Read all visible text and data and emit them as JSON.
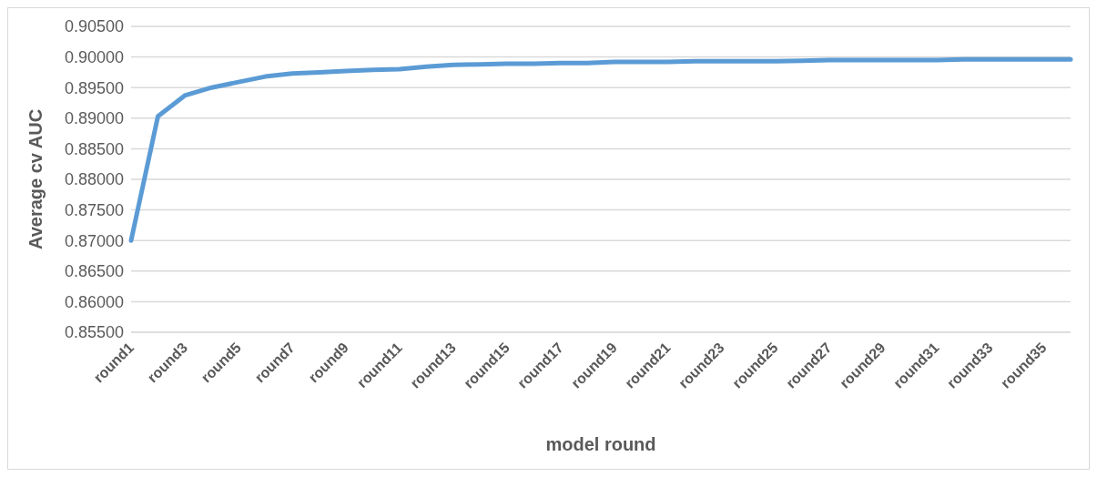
{
  "chart_data": {
    "type": "line",
    "xlabel": "model round",
    "ylabel": "Average cv AUC",
    "categories": [
      "round1",
      null,
      "round3",
      null,
      "round5",
      null,
      "round7",
      null,
      "round9",
      null,
      "round11",
      null,
      "round13",
      null,
      "round15",
      null,
      "round17",
      null,
      "round19",
      null,
      "round21",
      null,
      "round23",
      null,
      "round25",
      null,
      "round27",
      null,
      "round29",
      null,
      "round31",
      null,
      "round33",
      null,
      "round35",
      null
    ],
    "series": [
      {
        "color": "#5b9bd5",
        "values": [
          0.87,
          0.8903,
          0.8937,
          0.895,
          0.8959,
          0.8968,
          0.8973,
          0.8975,
          0.8977,
          0.8979,
          0.898,
          0.8984,
          0.8987,
          0.8988,
          0.8989,
          0.8989,
          0.899,
          0.899,
          0.8992,
          0.8992,
          0.8992,
          0.8993,
          0.8993,
          0.8993,
          0.8993,
          0.8994,
          0.8995,
          0.8995,
          0.8995,
          0.8995,
          0.8995,
          0.8996,
          0.8996,
          0.8996,
          0.8996,
          0.8996
        ]
      }
    ],
    "ylim": [
      0.855,
      0.905
    ],
    "yticks": [
      {
        "value": 0.855,
        "label": "0.85500"
      },
      {
        "value": 0.86,
        "label": "0.86000"
      },
      {
        "value": 0.865,
        "label": "0.86500"
      },
      {
        "value": 0.87,
        "label": "0.87000"
      },
      {
        "value": 0.875,
        "label": "0.87500"
      },
      {
        "value": 0.88,
        "label": "0.88000"
      },
      {
        "value": 0.885,
        "label": "0.88500"
      },
      {
        "value": 0.89,
        "label": "0.89000"
      },
      {
        "value": 0.895,
        "label": "0.89500"
      },
      {
        "value": 0.9,
        "label": "0.90000"
      },
      {
        "value": 0.905,
        "label": "0.90500"
      }
    ],
    "grid": "y",
    "legend": false,
    "marker": "none",
    "line_style": "solid"
  }
}
